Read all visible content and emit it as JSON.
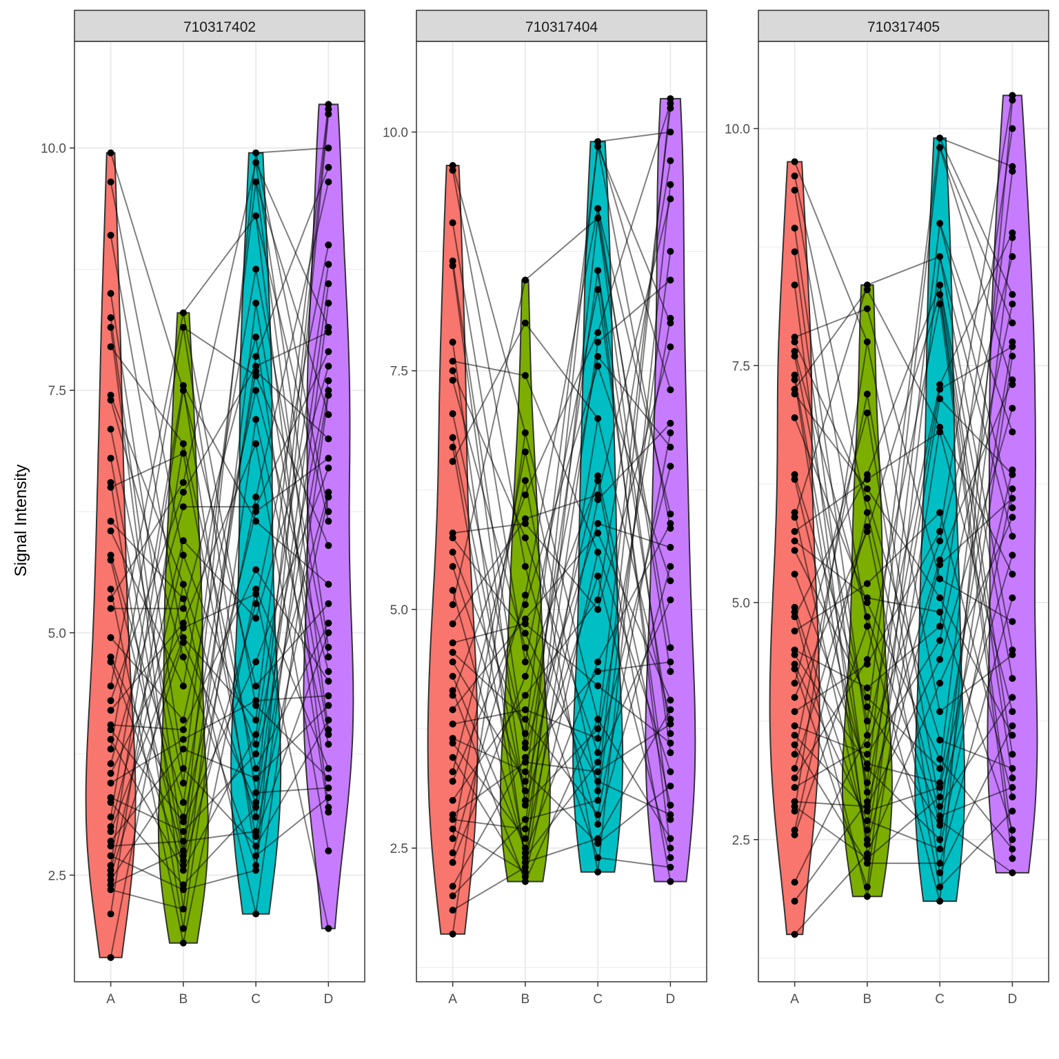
{
  "figure": {
    "ylabel": "Signal Intensity"
  },
  "colors": {
    "A": "#F8766D",
    "B": "#7CAE00",
    "C": "#00BFC4",
    "D": "#C77CFF",
    "point": "#000000",
    "line": "#000000",
    "strip_bg": "#D9D9D9",
    "grid": "#EBEBEB"
  },
  "chart_data": [
    {
      "type": "violin",
      "panel": "710317402",
      "categories": [
        "A",
        "B",
        "C",
        "D"
      ],
      "ylabel": "Signal Intensity",
      "ylim": [
        1.4,
        11.1
      ],
      "yticks": [
        2.5,
        5.0,
        7.5,
        10.0
      ],
      "ytick_labels": [
        "2.5",
        "5.0",
        "7.5",
        "10.0"
      ],
      "grid": true,
      "paired_lines": true,
      "series": [
        {
          "name": "A",
          "values": [
            9.95,
            9.65,
            9.1,
            8.5,
            8.25,
            8.15,
            7.95,
            7.45,
            7.4,
            7.1,
            6.8,
            6.55,
            6.5,
            6.15,
            6.05,
            5.8,
            5.75,
            5.45,
            5.35,
            5.25,
            4.95,
            4.75,
            4.7,
            4.45,
            4.3,
            4.2,
            4.05,
            4.0,
            3.9,
            3.8,
            3.65,
            3.55,
            3.45,
            3.3,
            3.25,
            3.1,
            3.0,
            2.95,
            2.85,
            2.8,
            2.7,
            2.6,
            2.55,
            2.5,
            2.45,
            2.4,
            2.35,
            2.1,
            1.65
          ]
        },
        {
          "name": "B",
          "values": [
            8.3,
            8.15,
            7.55,
            7.5,
            6.95,
            6.85,
            6.55,
            6.45,
            6.3,
            5.95,
            5.8,
            5.5,
            5.35,
            5.25,
            5.1,
            5.05,
            4.95,
            4.9,
            4.75,
            4.45,
            4.1,
            4.0,
            3.9,
            3.8,
            3.6,
            3.45,
            3.25,
            3.1,
            3.05,
            2.95,
            2.85,
            2.75,
            2.7,
            2.65,
            2.6,
            2.55,
            2.4,
            2.35,
            2.15,
            1.95,
            1.8
          ]
        },
        {
          "name": "C",
          "values": [
            9.95,
            9.85,
            9.65,
            9.3,
            8.75,
            8.4,
            8.05,
            7.85,
            7.75,
            7.7,
            7.65,
            7.5,
            7.2,
            6.95,
            6.4,
            6.3,
            6.25,
            6.15,
            5.65,
            5.45,
            5.4,
            5.3,
            5.15,
            4.7,
            4.45,
            4.3,
            4.25,
            4.1,
            3.95,
            3.85,
            3.75,
            3.6,
            3.5,
            3.35,
            3.25,
            3.2,
            3.1,
            2.95,
            2.9,
            2.8,
            2.7,
            2.6,
            2.55,
            2.1
          ]
        },
        {
          "name": "D",
          "values": [
            10.45,
            10.4,
            10.35,
            10.0,
            9.8,
            9.65,
            9.0,
            8.8,
            8.6,
            8.4,
            8.15,
            8.1,
            7.9,
            7.75,
            7.6,
            7.5,
            7.45,
            7.25,
            7.0,
            6.8,
            6.7,
            6.45,
            6.4,
            6.25,
            6.15,
            5.9,
            5.5,
            5.3,
            5.1,
            5.0,
            4.85,
            4.75,
            4.6,
            4.5,
            4.35,
            4.25,
            4.1,
            4.0,
            3.95,
            3.85,
            3.6,
            3.5,
            3.4,
            3.3,
            3.2,
            3.15,
            2.75,
            1.95
          ]
        }
      ]
    },
    {
      "type": "violin",
      "panel": "710317404",
      "categories": [
        "A",
        "B",
        "C",
        "D"
      ],
      "ylabel": "",
      "ylim": [
        1.1,
        10.95
      ],
      "yticks": [
        2.5,
        5.0,
        7.5,
        10.0
      ],
      "ytick_labels": [
        "2.5",
        "5.0",
        "7.5",
        "10.0"
      ],
      "grid": true,
      "paired_lines": true,
      "series": [
        {
          "name": "A",
          "values": [
            9.65,
            9.6,
            9.05,
            8.65,
            8.6,
            7.8,
            7.6,
            7.5,
            7.4,
            7.05,
            6.8,
            6.7,
            6.55,
            5.8,
            5.75,
            5.6,
            5.45,
            5.2,
            5.05,
            4.85,
            4.65,
            4.55,
            4.45,
            4.3,
            4.15,
            4.1,
            3.95,
            3.8,
            3.65,
            3.6,
            3.45,
            3.3,
            3.2,
            3.0,
            2.85,
            2.8,
            2.7,
            2.6,
            2.45,
            2.35,
            2.1,
            2.0,
            1.85,
            1.6
          ]
        },
        {
          "name": "B",
          "values": [
            8.45,
            8.0,
            7.45,
            6.85,
            6.65,
            6.35,
            6.2,
            5.95,
            5.9,
            5.75,
            5.45,
            5.15,
            5.05,
            4.9,
            4.85,
            4.75,
            4.6,
            4.45,
            4.3,
            4.1,
            3.95,
            3.85,
            3.7,
            3.6,
            3.55,
            3.45,
            3.4,
            3.3,
            3.2,
            3.1,
            3.0,
            2.95,
            2.8,
            2.7,
            2.6,
            2.5,
            2.45,
            2.4,
            2.35,
            2.3,
            2.25,
            2.2,
            2.15
          ]
        },
        {
          "name": "C",
          "values": [
            9.9,
            9.85,
            9.2,
            9.1,
            8.55,
            8.35,
            7.9,
            7.8,
            7.65,
            7.55,
            7.0,
            6.4,
            6.35,
            6.2,
            6.15,
            5.9,
            5.8,
            5.6,
            5.35,
            5.1,
            5.0,
            4.45,
            4.35,
            4.2,
            3.85,
            3.75,
            3.65,
            3.5,
            3.4,
            3.3,
            3.2,
            3.1,
            3.0,
            2.85,
            2.75,
            2.6,
            2.55,
            2.4,
            2.25
          ]
        },
        {
          "name": "D",
          "values": [
            10.35,
            10.3,
            10.25,
            10.0,
            9.7,
            9.45,
            9.3,
            8.75,
            8.45,
            8.05,
            8.0,
            7.75,
            7.3,
            6.95,
            6.85,
            6.7,
            6.5,
            6.0,
            5.9,
            5.85,
            5.65,
            5.45,
            5.3,
            5.1,
            4.6,
            4.45,
            4.35,
            4.05,
            3.95,
            3.85,
            3.8,
            3.7,
            3.6,
            3.5,
            3.3,
            3.15,
            2.95,
            2.85,
            2.8,
            2.6,
            2.5,
            2.4,
            2.3,
            2.15
          ]
        }
      ]
    },
    {
      "type": "violin",
      "panel": "710317405",
      "categories": [
        "A",
        "B",
        "C",
        "D"
      ],
      "ylabel": "",
      "ylim": [
        1.0,
        10.92
      ],
      "yticks": [
        2.5,
        5.0,
        7.5,
        10.0
      ],
      "ytick_labels": [
        "2.5",
        "5.0",
        "7.5",
        "10.0"
      ],
      "grid": true,
      "paired_lines": true,
      "series": [
        {
          "name": "A",
          "values": [
            9.65,
            9.5,
            9.35,
            8.95,
            8.7,
            8.35,
            7.8,
            7.75,
            7.65,
            7.6,
            7.4,
            7.35,
            7.25,
            7.2,
            6.95,
            6.35,
            6.3,
            5.95,
            5.9,
            5.75,
            5.65,
            5.55,
            5.3,
            4.95,
            4.9,
            4.85,
            4.7,
            4.5,
            4.45,
            4.35,
            4.3,
            4.15,
            4.0,
            3.85,
            3.7,
            3.6,
            3.5,
            3.4,
            3.25,
            3.15,
            3.05,
            2.9,
            2.85,
            2.8,
            2.6,
            2.55,
            2.05,
            1.85,
            1.5
          ]
        },
        {
          "name": "B",
          "values": [
            8.35,
            8.3,
            8.1,
            7.75,
            7.2,
            7.0,
            6.35,
            6.3,
            6.2,
            6.1,
            5.95,
            5.8,
            5.75,
            5.2,
            5.05,
            5.0,
            4.85,
            4.75,
            4.4,
            4.35,
            4.1,
            4.0,
            3.9,
            3.75,
            3.6,
            3.5,
            3.4,
            3.3,
            3.25,
            3.1,
            3.0,
            2.9,
            2.85,
            2.8,
            2.7,
            2.6,
            2.5,
            2.45,
            2.35,
            2.3,
            2.25,
            2.0,
            1.9
          ]
        },
        {
          "name": "C",
          "values": [
            9.9,
            9.8,
            9.0,
            8.65,
            8.35,
            8.25,
            8.15,
            7.3,
            7.25,
            7.15,
            6.85,
            6.8,
            5.95,
            5.75,
            5.65,
            5.45,
            5.4,
            5.25,
            5.05,
            4.9,
            4.75,
            4.6,
            4.4,
            4.15,
            3.85,
            3.55,
            3.35,
            3.25,
            3.1,
            3.05,
            2.95,
            2.85,
            2.75,
            2.7,
            2.65,
            2.5,
            2.4,
            2.25,
            2.15,
            2.0,
            1.85
          ]
        },
        {
          "name": "D",
          "values": [
            10.35,
            10.3,
            10.0,
            9.6,
            9.55,
            8.9,
            8.85,
            8.65,
            8.25,
            8.15,
            7.95,
            7.75,
            7.7,
            7.6,
            7.35,
            7.3,
            7.05,
            6.8,
            6.4,
            6.35,
            6.2,
            6.1,
            6.0,
            5.9,
            5.7,
            5.5,
            5.3,
            5.05,
            4.8,
            4.5,
            4.45,
            4.2,
            4.0,
            3.85,
            3.7,
            3.6,
            3.4,
            3.25,
            3.15,
            3.05,
            2.95,
            2.8,
            2.6,
            2.5,
            2.4,
            2.3,
            2.15
          ]
        }
      ]
    }
  ]
}
